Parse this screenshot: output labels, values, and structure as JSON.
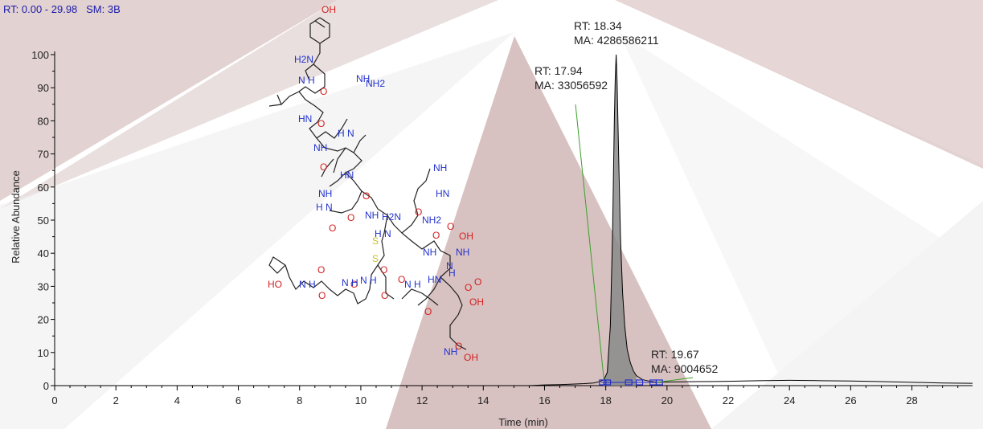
{
  "header": {
    "rt_label": "RT:",
    "rt_range": "0.00 - 29.98",
    "sm_label": "SM:",
    "sm_value": "3B"
  },
  "chart_data": {
    "type": "line",
    "xlabel": "Time (min)",
    "ylabel": "Relative Abundance",
    "xlim": [
      0,
      29.98
    ],
    "ylim": [
      0,
      100
    ],
    "xticks": [
      0,
      2,
      4,
      6,
      8,
      10,
      12,
      14,
      16,
      18,
      20,
      22,
      24,
      26,
      28
    ],
    "yticks": [
      0,
      10,
      20,
      30,
      40,
      50,
      60,
      70,
      80,
      90,
      100
    ],
    "grid": false,
    "fill_color": "#8a8a8a",
    "line_color": "#000000",
    "annotation_line_color": "#3aa02a",
    "marker_color": "#1f2fd0",
    "trace": {
      "x": [
        0,
        15.5,
        16,
        16.5,
        17,
        17.3,
        17.6,
        17.8,
        17.94,
        18.05,
        18.15,
        18.22,
        18.28,
        18.31,
        18.34,
        18.37,
        18.42,
        18.48,
        18.55,
        18.62,
        18.7,
        18.8,
        18.9,
        19.0,
        19.2,
        19.5,
        19.67,
        20,
        21,
        22,
        23,
        24,
        25,
        26,
        27,
        28,
        29,
        29.98
      ],
      "y": [
        0,
        0,
        0.2,
        0.3,
        0.5,
        0.6,
        0.8,
        1.2,
        1.8,
        4,
        18,
        45,
        80,
        93,
        100,
        92,
        70,
        45,
        28,
        18,
        11,
        7,
        4.5,
        3,
        1.8,
        1.2,
        1.0,
        1.1,
        1.2,
        1.3,
        1.5,
        1.6,
        1.5,
        1.4,
        1.2,
        1.0,
        0.8,
        0.7
      ]
    },
    "peaks": [
      {
        "rt_label": "RT: 17.94",
        "ma_label": "MA: 33056592",
        "rt": 17.94
      },
      {
        "rt_label": "RT: 18.34",
        "ma_label": "MA: 4286586211",
        "rt": 18.34
      },
      {
        "rt_label": "RT: 19.67",
        "ma_label": "MA: 9004652",
        "rt": 19.67
      }
    ],
    "integration_markers_x": [
      17.9,
      18.05,
      18.75,
      19.1,
      19.55,
      19.75
    ]
  },
  "molecule": {
    "atom_labels": [
      "OH",
      "H2N",
      "N H",
      "O",
      "HN",
      "NH",
      "NH2",
      "O",
      "H N",
      "NH",
      "HN",
      "O",
      "NH",
      "O",
      "H N",
      "O",
      "H N",
      "O",
      "NH",
      "O",
      "NH",
      "HN",
      "NH2",
      "H2N",
      "O",
      "O",
      "NH",
      "NH",
      "O",
      "S",
      "S",
      "OH",
      "N",
      "H",
      "HN",
      "O",
      "HO",
      "N H",
      "O",
      "O",
      "N H",
      "O",
      "N H",
      "O",
      "O",
      "N H",
      "O",
      "OH",
      "O",
      "NH",
      "O",
      "OH"
    ]
  }
}
